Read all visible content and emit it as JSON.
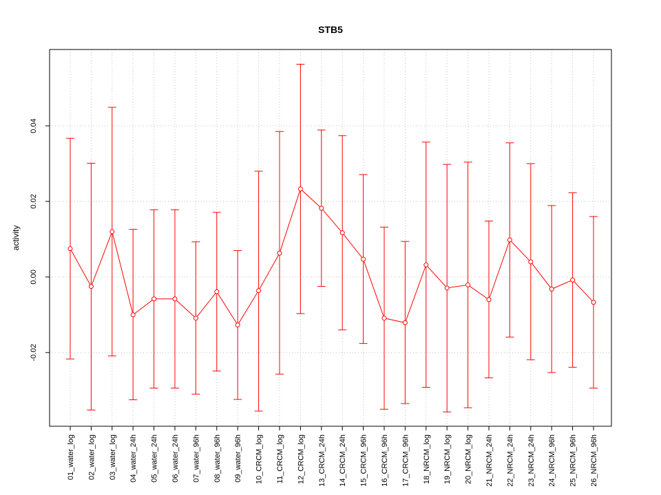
{
  "chart_data": {
    "type": "line",
    "title": "STB5",
    "xlabel": "",
    "ylabel": "activity",
    "ylim": [
      -0.0395,
      0.0602
    ],
    "yticks": [
      -0.02,
      0.0,
      0.02,
      0.04
    ],
    "ytick_labels": [
      "-0.02",
      "0.00",
      "0.02",
      "0.04"
    ],
    "grid": true,
    "series_color": "#ff0000",
    "grid_color": "#c0c0c0",
    "categories": [
      "01_water_log",
      "02_water_log",
      "03_water_log",
      "04_water_24h",
      "05_water_24h",
      "06_water_24h",
      "07_water_96h",
      "08_water_96h",
      "09_water_96h",
      "10_CRCM_log",
      "11_CRCM_log",
      "12_CRCM_log",
      "13_CRCM_24h",
      "14_CRCM_24h",
      "15_CRCM_96h",
      "16_CRCM_96h",
      "17_CRCM_96h",
      "18_NRCM_log",
      "19_NRCM_log",
      "20_NRCM_log",
      "21_NRCM_24h",
      "22_NRCM_24h",
      "23_NRCM_24h",
      "24_NRCM_96h",
      "25_NRCM_96h",
      "26_NRCM_96h"
    ],
    "values": [
      0.0075,
      -0.0025,
      0.012,
      -0.01,
      -0.0058,
      -0.0058,
      -0.0109,
      -0.0039,
      -0.0127,
      -0.0036,
      0.0063,
      0.0233,
      0.0182,
      0.0117,
      0.0047,
      -0.0109,
      -0.0121,
      0.0032,
      -0.0029,
      -0.0021,
      -0.006,
      0.0098,
      0.004,
      -0.0032,
      -0.0008,
      -0.0067
    ],
    "upper": [
      0.0367,
      0.0301,
      0.0449,
      0.0126,
      0.0178,
      0.0178,
      0.0093,
      0.0171,
      0.007,
      0.028,
      0.0385,
      0.0563,
      0.0389,
      0.0374,
      0.0271,
      0.0132,
      0.0094,
      0.0357,
      0.0298,
      0.0304,
      0.0148,
      0.0355,
      0.03,
      0.0189,
      0.0223,
      0.016
    ],
    "lower": [
      -0.0217,
      -0.0352,
      -0.0209,
      -0.0325,
      -0.0294,
      -0.0294,
      -0.031,
      -0.0249,
      -0.0324,
      -0.0355,
      -0.0257,
      -0.0097,
      -0.0025,
      -0.014,
      -0.0176,
      -0.035,
      -0.0335,
      -0.0292,
      -0.0357,
      -0.0346,
      -0.0267,
      -0.0159,
      -0.0219,
      -0.0253,
      -0.0239,
      -0.0294
    ]
  }
}
